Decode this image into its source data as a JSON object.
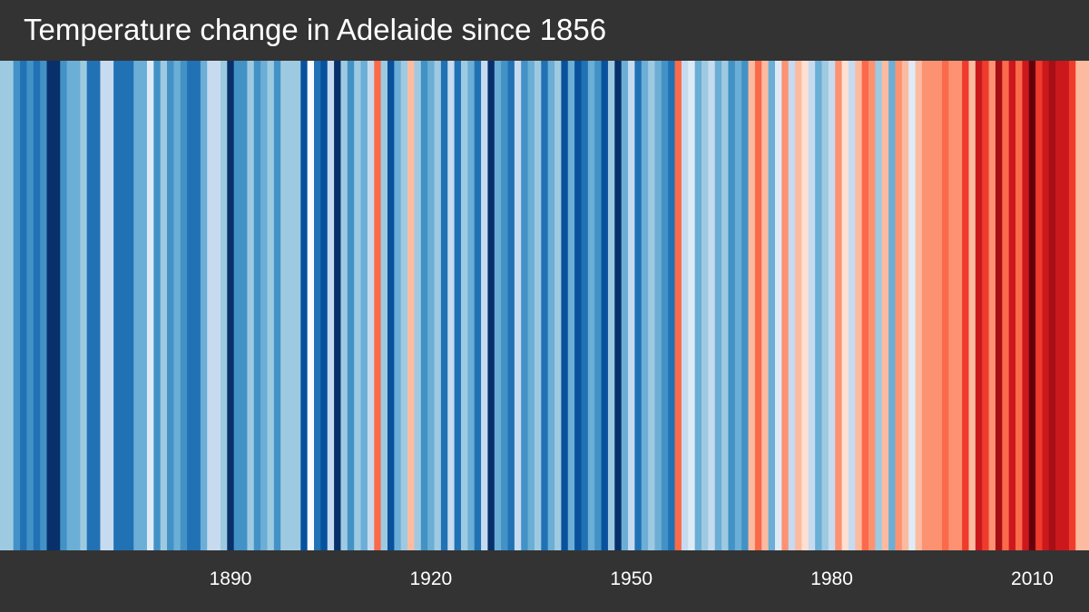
{
  "chart_data": {
    "type": "heatmap",
    "title": "Temperature change in Adelaide since 1856",
    "x_range": [
      1856,
      2018
    ],
    "x_ticks": [
      1890,
      1920,
      1950,
      1980,
      2010
    ],
    "x_tick_labels": [
      "1890",
      "1920",
      "1950",
      "1980",
      "2010"
    ],
    "grid": false,
    "legend": "none",
    "color_scale": "warming stripes: dark blue (cooler) to dark red (warmer)",
    "background_color": "#333333",
    "stripes": [
      {
        "year": 1856,
        "color": "#9ecae1"
      },
      {
        "year": 1857,
        "color": "#9ecae1"
      },
      {
        "year": 1858,
        "color": "#4292c6"
      },
      {
        "year": 1859,
        "color": "#2171b5"
      },
      {
        "year": 1860,
        "color": "#4292c6"
      },
      {
        "year": 1861,
        "color": "#2171b5"
      },
      {
        "year": 1862,
        "color": "#4292c6"
      },
      {
        "year": 1863,
        "color": "#08306b"
      },
      {
        "year": 1864,
        "color": "#08306b"
      },
      {
        "year": 1865,
        "color": "#4292c6"
      },
      {
        "year": 1866,
        "color": "#6baed6"
      },
      {
        "year": 1867,
        "color": "#6baed6"
      },
      {
        "year": 1868,
        "color": "#9ecae1"
      },
      {
        "year": 1869,
        "color": "#2171b5"
      },
      {
        "year": 1870,
        "color": "#2171b5"
      },
      {
        "year": 1871,
        "color": "#c6dbef"
      },
      {
        "year": 1872,
        "color": "#c6dbef"
      },
      {
        "year": 1873,
        "color": "#2171b5"
      },
      {
        "year": 1874,
        "color": "#2171b5"
      },
      {
        "year": 1875,
        "color": "#2171b5"
      },
      {
        "year": 1876,
        "color": "#6baed6"
      },
      {
        "year": 1877,
        "color": "#6baed6"
      },
      {
        "year": 1878,
        "color": "#deebf7"
      },
      {
        "year": 1879,
        "color": "#4292c6"
      },
      {
        "year": 1880,
        "color": "#9ecae1"
      },
      {
        "year": 1881,
        "color": "#4292c6"
      },
      {
        "year": 1882,
        "color": "#6baed6"
      },
      {
        "year": 1883,
        "color": "#4292c6"
      },
      {
        "year": 1884,
        "color": "#2171b5"
      },
      {
        "year": 1885,
        "color": "#2171b5"
      },
      {
        "year": 1886,
        "color": "#6baed6"
      },
      {
        "year": 1887,
        "color": "#c6dbef"
      },
      {
        "year": 1888,
        "color": "#c6dbef"
      },
      {
        "year": 1889,
        "color": "#9ecae1"
      },
      {
        "year": 1890,
        "color": "#08306b"
      },
      {
        "year": 1891,
        "color": "#4292c6"
      },
      {
        "year": 1892,
        "color": "#4292c6"
      },
      {
        "year": 1893,
        "color": "#9ecae1"
      },
      {
        "year": 1894,
        "color": "#4292c6"
      },
      {
        "year": 1895,
        "color": "#6baed6"
      },
      {
        "year": 1896,
        "color": "#9ecae1"
      },
      {
        "year": 1897,
        "color": "#4292c6"
      },
      {
        "year": 1898,
        "color": "#9ecae1"
      },
      {
        "year": 1899,
        "color": "#9ecae1"
      },
      {
        "year": 1900,
        "color": "#9ecae1"
      },
      {
        "year": 1901,
        "color": "#08519c"
      },
      {
        "year": 1902,
        "color": "#f7fbff"
      },
      {
        "year": 1903,
        "color": "#2171b5"
      },
      {
        "year": 1904,
        "color": "#08519c"
      },
      {
        "year": 1905,
        "color": "#c6dbef"
      },
      {
        "year": 1906,
        "color": "#08306b"
      },
      {
        "year": 1907,
        "color": "#9ecae1"
      },
      {
        "year": 1908,
        "color": "#4292c6"
      },
      {
        "year": 1909,
        "color": "#9ecae1"
      },
      {
        "year": 1910,
        "color": "#6baed6"
      },
      {
        "year": 1911,
        "color": "#c6dbef"
      },
      {
        "year": 1912,
        "color": "#fb6a4a"
      },
      {
        "year": 1913,
        "color": "#9ecae1"
      },
      {
        "year": 1914,
        "color": "#08519c"
      },
      {
        "year": 1915,
        "color": "#6baed6"
      },
      {
        "year": 1916,
        "color": "#9ecae1"
      },
      {
        "year": 1917,
        "color": "#fcbba1"
      },
      {
        "year": 1918,
        "color": "#9ecae1"
      },
      {
        "year": 1919,
        "color": "#4292c6"
      },
      {
        "year": 1920,
        "color": "#6baed6"
      },
      {
        "year": 1921,
        "color": "#9ecae1"
      },
      {
        "year": 1922,
        "color": "#2171b5"
      },
      {
        "year": 1923,
        "color": "#c6dbef"
      },
      {
        "year": 1924,
        "color": "#2171b5"
      },
      {
        "year": 1925,
        "color": "#9ecae1"
      },
      {
        "year": 1926,
        "color": "#6baed6"
      },
      {
        "year": 1927,
        "color": "#2171b5"
      },
      {
        "year": 1928,
        "color": "#c6dbef"
      },
      {
        "year": 1929,
        "color": "#08306b"
      },
      {
        "year": 1930,
        "color": "#6baed6"
      },
      {
        "year": 1931,
        "color": "#4292c6"
      },
      {
        "year": 1932,
        "color": "#2171b5"
      },
      {
        "year": 1933,
        "color": "#c6dbef"
      },
      {
        "year": 1934,
        "color": "#4292c6"
      },
      {
        "year": 1935,
        "color": "#6baed6"
      },
      {
        "year": 1936,
        "color": "#9ecae1"
      },
      {
        "year": 1937,
        "color": "#2171b5"
      },
      {
        "year": 1938,
        "color": "#6baed6"
      },
      {
        "year": 1939,
        "color": "#9ecae1"
      },
      {
        "year": 1940,
        "color": "#08519c"
      },
      {
        "year": 1941,
        "color": "#6baed6"
      },
      {
        "year": 1942,
        "color": "#08519c"
      },
      {
        "year": 1943,
        "color": "#2171b5"
      },
      {
        "year": 1944,
        "color": "#6baed6"
      },
      {
        "year": 1945,
        "color": "#4292c6"
      },
      {
        "year": 1946,
        "color": "#08519c"
      },
      {
        "year": 1947,
        "color": "#9ecae1"
      },
      {
        "year": 1948,
        "color": "#08306b"
      },
      {
        "year": 1949,
        "color": "#6baed6"
      },
      {
        "year": 1950,
        "color": "#c6dbef"
      },
      {
        "year": 1951,
        "color": "#2171b5"
      },
      {
        "year": 1952,
        "color": "#6baed6"
      },
      {
        "year": 1953,
        "color": "#9ecae1"
      },
      {
        "year": 1954,
        "color": "#6baed6"
      },
      {
        "year": 1955,
        "color": "#4292c6"
      },
      {
        "year": 1956,
        "color": "#2171b5"
      },
      {
        "year": 1957,
        "color": "#fb6a4a"
      },
      {
        "year": 1958,
        "color": "#c6dbef"
      },
      {
        "year": 1959,
        "color": "#deebf7"
      },
      {
        "year": 1960,
        "color": "#6baed6"
      },
      {
        "year": 1961,
        "color": "#9ecae1"
      },
      {
        "year": 1962,
        "color": "#c6dbef"
      },
      {
        "year": 1963,
        "color": "#6baed6"
      },
      {
        "year": 1964,
        "color": "#9ecae1"
      },
      {
        "year": 1965,
        "color": "#4292c6"
      },
      {
        "year": 1966,
        "color": "#6baed6"
      },
      {
        "year": 1967,
        "color": "#4292c6"
      },
      {
        "year": 1968,
        "color": "#fcbba1"
      },
      {
        "year": 1969,
        "color": "#fb6a4a"
      },
      {
        "year": 1970,
        "color": "#fcbba1"
      },
      {
        "year": 1971,
        "color": "#6baed6"
      },
      {
        "year": 1972,
        "color": "#deebf7"
      },
      {
        "year": 1973,
        "color": "#fc9272"
      },
      {
        "year": 1974,
        "color": "#c6dbef"
      },
      {
        "year": 1975,
        "color": "#fcbba1"
      },
      {
        "year": 1976,
        "color": "#fee0d2"
      },
      {
        "year": 1977,
        "color": "#c6dbef"
      },
      {
        "year": 1978,
        "color": "#6baed6"
      },
      {
        "year": 1979,
        "color": "#9ecae1"
      },
      {
        "year": 1980,
        "color": "#c6dbef"
      },
      {
        "year": 1981,
        "color": "#fc9272"
      },
      {
        "year": 1982,
        "color": "#fee0d2"
      },
      {
        "year": 1983,
        "color": "#c6dbef"
      },
      {
        "year": 1984,
        "color": "#fcbba1"
      },
      {
        "year": 1985,
        "color": "#fb6a4a"
      },
      {
        "year": 1986,
        "color": "#fc9272"
      },
      {
        "year": 1987,
        "color": "#9ecae1"
      },
      {
        "year": 1988,
        "color": "#fcbba1"
      },
      {
        "year": 1989,
        "color": "#6baed6"
      },
      {
        "year": 1990,
        "color": "#fc9272"
      },
      {
        "year": 1991,
        "color": "#fcbba1"
      },
      {
        "year": 1992,
        "color": "#deebf7"
      },
      {
        "year": 1993,
        "color": "#fcbba1"
      },
      {
        "year": 1994,
        "color": "#fc9272"
      },
      {
        "year": 1995,
        "color": "#fc9272"
      },
      {
        "year": 1996,
        "color": "#fc9272"
      },
      {
        "year": 1997,
        "color": "#fb6a4a"
      },
      {
        "year": 1998,
        "color": "#fc9272"
      },
      {
        "year": 1999,
        "color": "#fc9272"
      },
      {
        "year": 2000,
        "color": "#ef3b2c"
      },
      {
        "year": 2001,
        "color": "#fcbba1"
      },
      {
        "year": 2002,
        "color": "#cb181d"
      },
      {
        "year": 2003,
        "color": "#ef3b2c"
      },
      {
        "year": 2004,
        "color": "#fc9272"
      },
      {
        "year": 2005,
        "color": "#a50f15"
      },
      {
        "year": 2006,
        "color": "#fb6a4a"
      },
      {
        "year": 2007,
        "color": "#cb181d"
      },
      {
        "year": 2008,
        "color": "#fb6a4a"
      },
      {
        "year": 2009,
        "color": "#cb181d"
      },
      {
        "year": 2010,
        "color": "#67000d"
      },
      {
        "year": 2011,
        "color": "#ef3b2c"
      },
      {
        "year": 2012,
        "color": "#cb181d"
      },
      {
        "year": 2013,
        "color": "#a50f15"
      },
      {
        "year": 2014,
        "color": "#cb181d"
      },
      {
        "year": 2015,
        "color": "#cb181d"
      },
      {
        "year": 2016,
        "color": "#ef3b2c"
      },
      {
        "year": 2017,
        "color": "#fcbba1"
      },
      {
        "year": 2018,
        "color": "#fcbba1"
      }
    ]
  }
}
